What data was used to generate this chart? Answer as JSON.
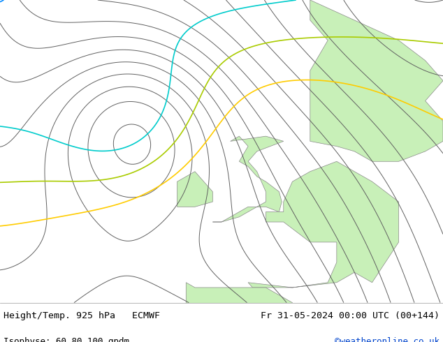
{
  "title_left": "Height/Temp. 925 hPa   ECMWF",
  "title_right": "Fr 31-05-2024 00:00 UTC (00+144)",
  "subtitle_left": "Isophyse: 60 80 100 gpdm",
  "subtitle_right": "©weatheronline.co.uk",
  "sea_color": "#d8d8d8",
  "land_color": "#c8f0b8",
  "border_color": "#888888",
  "text_color": "#000000",
  "link_color": "#0044cc",
  "font_size_title": 9.5,
  "font_size_sub": 9.0,
  "lon_min": -30,
  "lon_max": 20,
  "lat_min": 42,
  "lat_max": 72,
  "label_84_lon": -8,
  "label_84_lat": 71,
  "label_80_lon": -16,
  "label_80_lat": 60,
  "label_60_lon": -12,
  "label_60_lat": 57,
  "label_80b_lon": 5,
  "label_80b_lat": 48,
  "label_80c_lon": 7,
  "label_80c_lat": 45
}
